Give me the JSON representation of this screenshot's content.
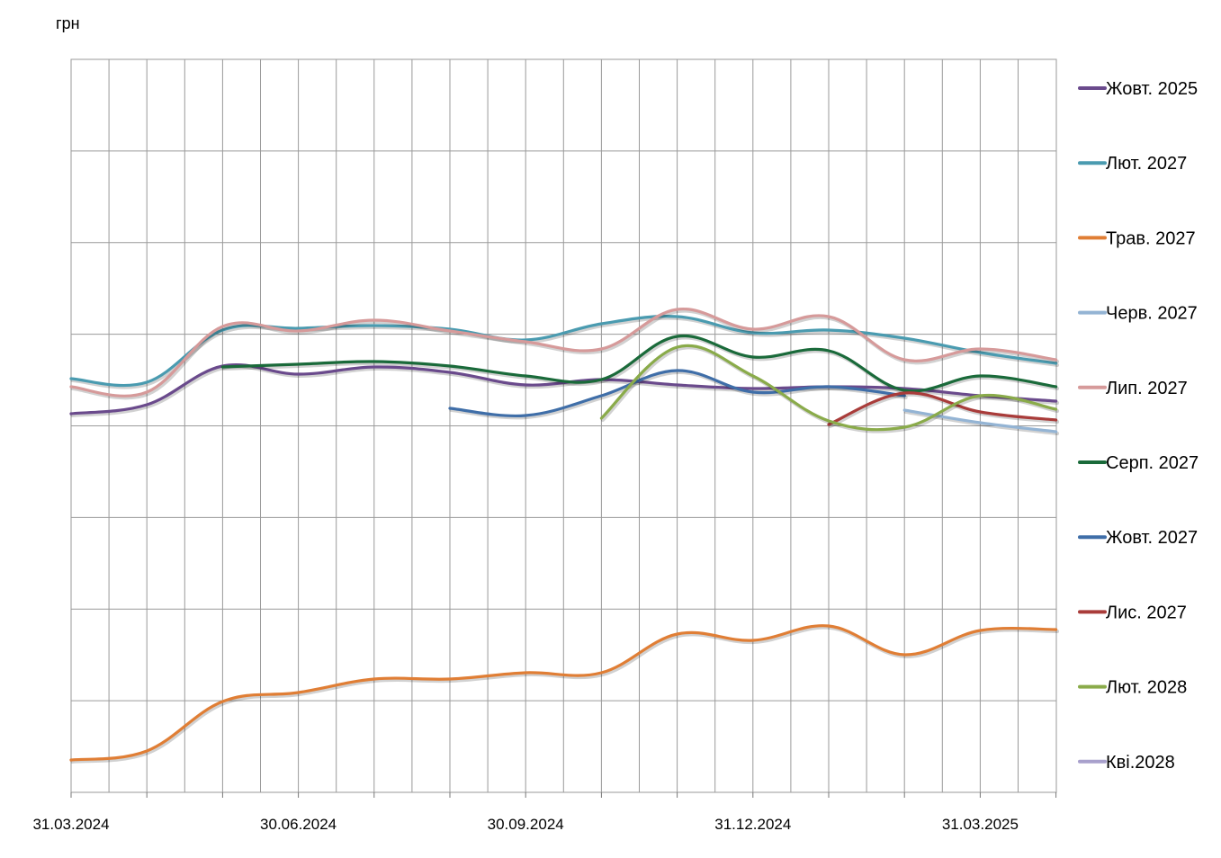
{
  "chart_data": {
    "type": "line",
    "ylabel": "грн",
    "x_tick_labels": [
      "31.03.2024",
      "30.06.2024",
      "30.09.2024",
      "31.12.2024",
      "31.03.2025"
    ],
    "grid": true,
    "legend_position": "right",
    "x_dates": [
      "2024-03-31",
      "2024-04-30",
      "2024-05-31",
      "2024-06-30",
      "2024-07-31",
      "2024-08-31",
      "2024-09-30",
      "2024-10-31",
      "2024-11-30",
      "2024-12-31",
      "2025-01-31",
      "2025-02-28",
      "2025-03-31",
      "2025-04-30"
    ],
    "series": [
      {
        "name": "Жовт. 2025",
        "color": "#6a4a8c",
        "values": [
          [
            0,
            460
          ],
          [
            2,
            450
          ],
          [
            4,
            407
          ],
          [
            6,
            416
          ],
          [
            8,
            408
          ],
          [
            10,
            414
          ],
          [
            12,
            428
          ],
          [
            14,
            422
          ],
          [
            16,
            428
          ],
          [
            18,
            432
          ],
          [
            20,
            430
          ],
          [
            22,
            432
          ],
          [
            24,
            440
          ],
          [
            26,
            446
          ]
        ]
      },
      {
        "name": "Лют. 2027",
        "color": "#4a9bb0",
        "values": [
          [
            0,
            421
          ],
          [
            2,
            425
          ],
          [
            4,
            367
          ],
          [
            6,
            365
          ],
          [
            8,
            362
          ],
          [
            10,
            366
          ],
          [
            12,
            378
          ],
          [
            14,
            360
          ],
          [
            16,
            352
          ],
          [
            18,
            370
          ],
          [
            20,
            367
          ],
          [
            22,
            376
          ],
          [
            24,
            392
          ],
          [
            26,
            404
          ]
        ]
      },
      {
        "name": "Трав. 2027",
        "color": "#e07e35",
        "values": [
          [
            0,
            845
          ],
          [
            2,
            835
          ],
          [
            4,
            780
          ],
          [
            6,
            770
          ],
          [
            8,
            755
          ],
          [
            10,
            755
          ],
          [
            12,
            748
          ],
          [
            14,
            748
          ],
          [
            16,
            705
          ],
          [
            18,
            712
          ],
          [
            20,
            696
          ],
          [
            22,
            728
          ],
          [
            24,
            701
          ],
          [
            26,
            700
          ]
        ]
      },
      {
        "name": "Черв. 2027",
        "color": "#94b4d4",
        "values": [
          [
            22,
            456
          ],
          [
            24,
            470
          ],
          [
            26,
            480
          ]
        ]
      },
      {
        "name": "Лип. 2027",
        "color": "#d69a9a",
        "values": [
          [
            0,
            430
          ],
          [
            2,
            436
          ],
          [
            4,
            363
          ],
          [
            6,
            368
          ],
          [
            8,
            356
          ],
          [
            10,
            368
          ],
          [
            12,
            380
          ],
          [
            14,
            388
          ],
          [
            16,
            344
          ],
          [
            18,
            366
          ],
          [
            20,
            352
          ],
          [
            22,
            400
          ],
          [
            24,
            388
          ],
          [
            26,
            400
          ]
        ]
      },
      {
        "name": "Серп.  2027",
        "color": "#1a6a3a",
        "values": [
          [
            4,
            408
          ],
          [
            6,
            405
          ],
          [
            8,
            402
          ],
          [
            10,
            407
          ],
          [
            12,
            418
          ],
          [
            14,
            422
          ],
          [
            16,
            374
          ],
          [
            18,
            397
          ],
          [
            20,
            390
          ],
          [
            22,
            434
          ],
          [
            24,
            418
          ],
          [
            26,
            430
          ]
        ]
      },
      {
        "name": "Жовт. 2027",
        "color": "#3f6ea8",
        "values": [
          [
            10,
            454
          ],
          [
            12,
            462
          ],
          [
            14,
            440
          ],
          [
            16,
            412
          ],
          [
            18,
            436
          ],
          [
            20,
            430
          ],
          [
            22,
            440
          ]
        ]
      },
      {
        "name": "Лис. 2027",
        "color": "#a93c3a",
        "values": [
          [
            20,
            472
          ],
          [
            22,
            437
          ],
          [
            24,
            458
          ],
          [
            26,
            467
          ]
        ]
      },
      {
        "name": "Лют. 2028",
        "color": "#8aab4a",
        "values": [
          [
            14,
            465
          ],
          [
            16,
            386
          ],
          [
            18,
            418
          ],
          [
            20,
            468
          ],
          [
            22,
            475
          ],
          [
            24,
            440
          ],
          [
            26,
            455
          ]
        ]
      },
      {
        "name": "Кві.2028",
        "color": "#a8a0cc",
        "values": []
      }
    ]
  }
}
